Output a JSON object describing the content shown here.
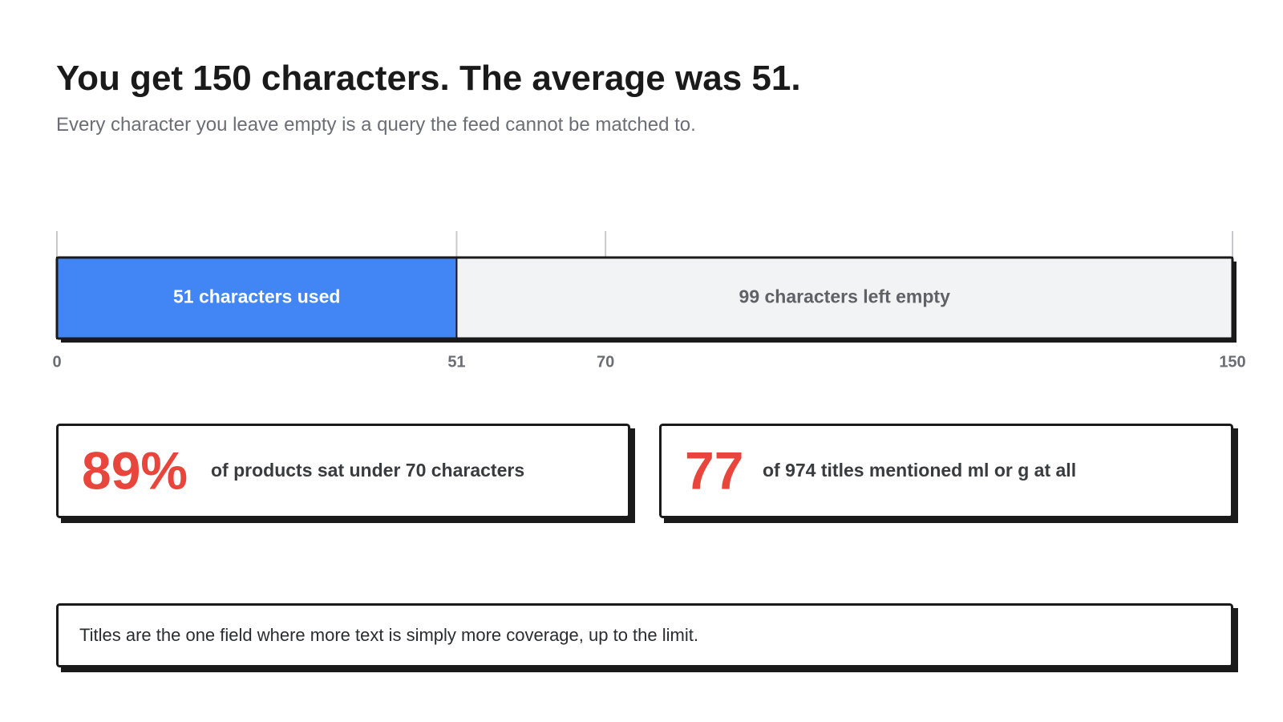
{
  "chart_data": {
    "type": "bar",
    "orientation": "horizontal",
    "stacked": true,
    "title": "You get 150 characters. The average was 51.",
    "subtitle": "Every character you leave empty is a query the feed cannot be matched to.",
    "categories": [
      null
    ],
    "series": [
      {
        "name": "51 characters used",
        "color": "#4285f4",
        "values": [
          51
        ]
      },
      {
        "name": "99 characters left empty",
        "color": "#f2f3f5",
        "values": [
          99
        ]
      }
    ],
    "xlim": [
      0,
      150
    ],
    "xticks": [
      0,
      51,
      70,
      150
    ]
  },
  "stats": [
    {
      "value": "89%",
      "text": "of products sat under 70 characters"
    },
    {
      "value": "77",
      "text": "of 974 titles mentioned ml or g at all"
    }
  ],
  "note": "Titles are the one field where more text is simply more coverage, up to the limit."
}
